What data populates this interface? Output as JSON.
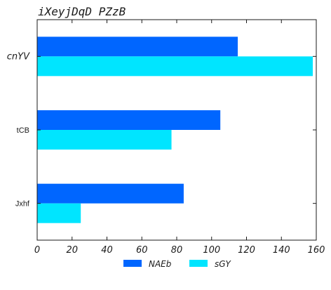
{
  "chart_data": {
    "type": "bar",
    "orientation": "horizontal",
    "title": "iXeyjDqD PZzB",
    "categories": [
      "cnYV",
      "tCB",
      "Jxhf"
    ],
    "series": [
      {
        "name": "NAEb",
        "color": "#0066ff",
        "values": [
          115,
          105,
          84
        ]
      },
      {
        "name": "sGY",
        "color": "#00e5ff",
        "values": [
          158,
          77,
          25
        ]
      }
    ],
    "xlim": [
      0,
      160
    ],
    "xticks": [
      "0",
      "20",
      "40",
      "60",
      "80",
      "100",
      "120",
      "140",
      "160"
    ],
    "grid": false,
    "legend_position": "bottom-center"
  }
}
